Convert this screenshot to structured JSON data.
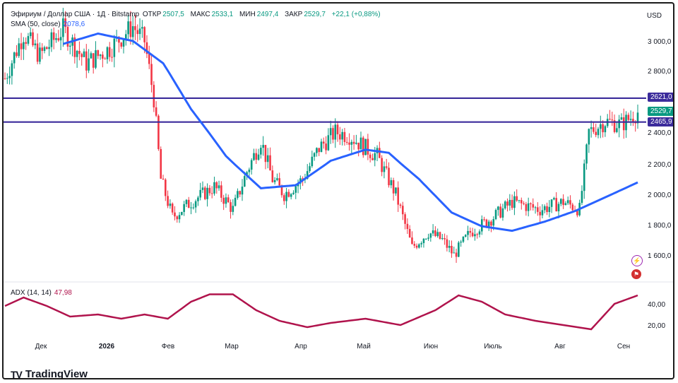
{
  "header": {
    "symbol": "Эфириум / Доллар США · 1Д · Bitstamp",
    "open_label": "ОТКР",
    "open": "2507,5",
    "high_label": "МАКС",
    "high": "2533,1",
    "low_label": "МИН",
    "low": "2497,4",
    "close_label": "ЗАКР",
    "close": "2529,7",
    "change": "+22,1 (+0,88%)"
  },
  "sma": {
    "label": "SMA (50, close)",
    "value": "2078,6"
  },
  "adx": {
    "label": "ADX (14, 14)",
    "value": "47,98"
  },
  "currency": "USD",
  "tags": {
    "res1": "2621,0",
    "last": "2529,7",
    "res2": "2465,9"
  },
  "colors": {
    "up": "#089981",
    "down": "#f23645",
    "sma": "#2962ff",
    "adx": "#b0134c",
    "level": "#3b2b9b"
  },
  "brand": "TradingView",
  "icons": [
    "lightning-icon",
    "flag-icon"
  ],
  "chart_data": [
    {
      "type": "candlestick",
      "title": "Эфириум / Доллар США · 1Д · Bitstamp",
      "x": [
        "Дек",
        "2026",
        "Фев",
        "Мар",
        "Апр",
        "Май",
        "Июн",
        "Июль",
        "Авг",
        "Сен"
      ],
      "ylim": [
        1500,
        3200
      ],
      "yticks": [
        1600,
        1800,
        2000,
        2200,
        2400,
        2800,
        3000
      ],
      "ytick_labels": [
        "1 600,0",
        "1 800,0",
        "2 000,0",
        "2 200,0",
        "2 400,0",
        "2 800,0",
        "3 000,0"
      ],
      "close_approx": [
        [
          0,
          2750
        ],
        [
          8,
          3050
        ],
        [
          15,
          2900
        ],
        [
          25,
          3080
        ],
        [
          35,
          2850
        ],
        [
          45,
          2950
        ],
        [
          55,
          3100
        ],
        [
          60,
          3000
        ],
        [
          64,
          2620
        ],
        [
          67,
          2100
        ],
        [
          72,
          1850
        ],
        [
          80,
          1950
        ],
        [
          90,
          2050
        ],
        [
          98,
          1900
        ],
        [
          104,
          2150
        ],
        [
          110,
          2350
        ],
        [
          115,
          2100
        ],
        [
          120,
          2000
        ],
        [
          128,
          2100
        ],
        [
          135,
          2300
        ],
        [
          142,
          2400
        ],
        [
          148,
          2380
        ],
        [
          155,
          2300
        ],
        [
          160,
          2250
        ],
        [
          168,
          2000
        ],
        [
          175,
          1650
        ],
        [
          182,
          1750
        ],
        [
          188,
          1700
        ],
        [
          193,
          1600
        ],
        [
          200,
          1750
        ],
        [
          210,
          1850
        ],
        [
          218,
          1950
        ],
        [
          230,
          1900
        ],
        [
          240,
          1950
        ],
        [
          247,
          1900
        ],
        [
          251,
          2400
        ],
        [
          258,
          2470
        ],
        [
          265,
          2450
        ],
        [
          272,
          2530
        ]
      ],
      "sma_approx": [
        [
          25,
          2980
        ],
        [
          40,
          3050
        ],
        [
          55,
          3000
        ],
        [
          68,
          2850
        ],
        [
          80,
          2550
        ],
        [
          95,
          2250
        ],
        [
          110,
          2040
        ],
        [
          125,
          2060
        ],
        [
          140,
          2220
        ],
        [
          155,
          2290
        ],
        [
          165,
          2270
        ],
        [
          178,
          2100
        ],
        [
          192,
          1880
        ],
        [
          205,
          1790
        ],
        [
          218,
          1760
        ],
        [
          232,
          1820
        ],
        [
          245,
          1890
        ],
        [
          258,
          1980
        ],
        [
          272,
          2078.6
        ]
      ],
      "levels": [
        2621.0,
        2465.9
      ],
      "last_price": 2529.7
    },
    {
      "type": "line",
      "title": "ADX (14, 14)",
      "ylim": [
        10,
        60
      ],
      "yticks": [
        20,
        40
      ],
      "ytick_labels": [
        "20,00",
        "40,00"
      ],
      "values_approx": [
        [
          0,
          38
        ],
        [
          8,
          46
        ],
        [
          18,
          38
        ],
        [
          28,
          28
        ],
        [
          40,
          30
        ],
        [
          50,
          26
        ],
        [
          60,
          30
        ],
        [
          70,
          26
        ],
        [
          80,
          42
        ],
        [
          88,
          49
        ],
        [
          98,
          49
        ],
        [
          108,
          34
        ],
        [
          118,
          24
        ],
        [
          130,
          18
        ],
        [
          140,
          22
        ],
        [
          155,
          26
        ],
        [
          170,
          20
        ],
        [
          185,
          34
        ],
        [
          195,
          48
        ],
        [
          205,
          42
        ],
        [
          215,
          30
        ],
        [
          228,
          24
        ],
        [
          240,
          20
        ],
        [
          252,
          16
        ],
        [
          262,
          40
        ],
        [
          272,
          47.98
        ]
      ]
    }
  ]
}
